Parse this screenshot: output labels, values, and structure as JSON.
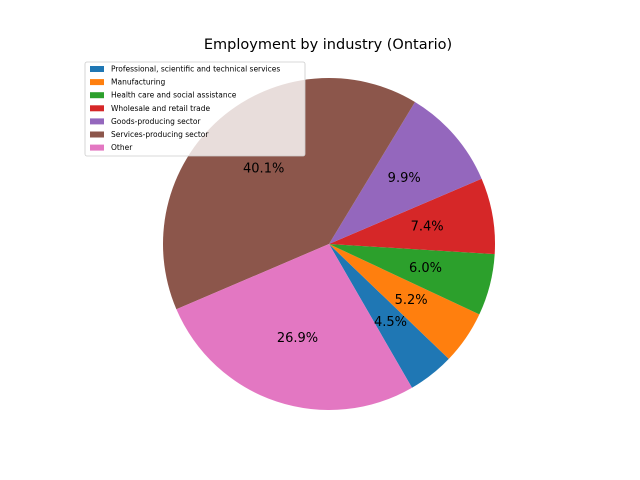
{
  "chart_data": {
    "type": "pie",
    "title": "Employment by industry (Ontario)",
    "categories": [
      "Professional, scientific and technical services",
      "Manufacturing",
      "Health care and social assistance",
      "Wholesale and retail trade",
      "Goods-producing sector",
      "Services-producing sector",
      "Other"
    ],
    "values": [
      4.5,
      5.2,
      6.0,
      7.4,
      9.9,
      40.1,
      26.9
    ],
    "labels": [
      "4.5%",
      "5.2%",
      "6.0%",
      "7.4%",
      "9.9%",
      "40.1%",
      "26.9%"
    ],
    "colors": [
      "#1f77b4",
      "#ff7f0e",
      "#2ca02c",
      "#d62728",
      "#9467bd",
      "#8c564b",
      "#e377c2"
    ],
    "legend_position": "upper left",
    "start_angle": -60,
    "direction": "counterclockwise"
  }
}
